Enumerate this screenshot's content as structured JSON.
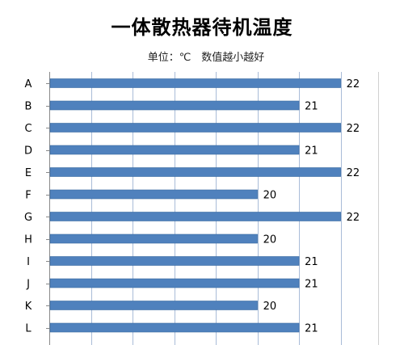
{
  "chart_data": {
    "type": "bar",
    "orientation": "horizontal",
    "title": "一体散热器待机温度",
    "subtitle": "单位：℃　数值越小越好",
    "categories": [
      "A",
      "B",
      "C",
      "D",
      "E",
      "F",
      "G",
      "H",
      "I",
      "J",
      "K",
      "L"
    ],
    "values": [
      22,
      21,
      22,
      21,
      22,
      20,
      22,
      20,
      21,
      21,
      20,
      21
    ],
    "xlim": [
      15,
      22.9
    ],
    "grid": true,
    "legend": "none",
    "data_labels": true,
    "colors": {
      "bar_fill": "#4f81bd",
      "bar_stroke": "#3a6aa0",
      "grid": "#a9bcd8",
      "text": "#000000"
    }
  }
}
